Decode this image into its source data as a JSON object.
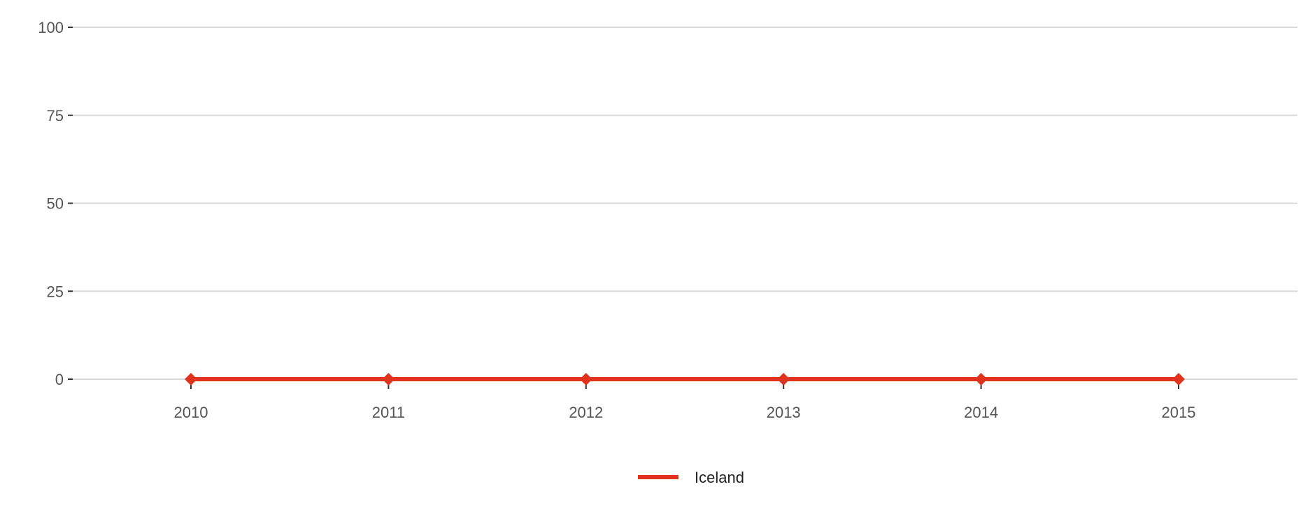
{
  "chart_data": {
    "type": "line",
    "x": [
      "2010",
      "2011",
      "2012",
      "2013",
      "2014",
      "2015"
    ],
    "yticks": [
      "0",
      "25",
      "50",
      "75",
      "100"
    ],
    "ylim": [
      0,
      100
    ],
    "grid": true,
    "legend_position": "bottom-center",
    "series": [
      {
        "name": "Iceland",
        "color": "#e0321c",
        "marker": "diamond",
        "values": [
          0,
          0,
          0,
          0,
          0,
          0
        ]
      }
    ]
  }
}
